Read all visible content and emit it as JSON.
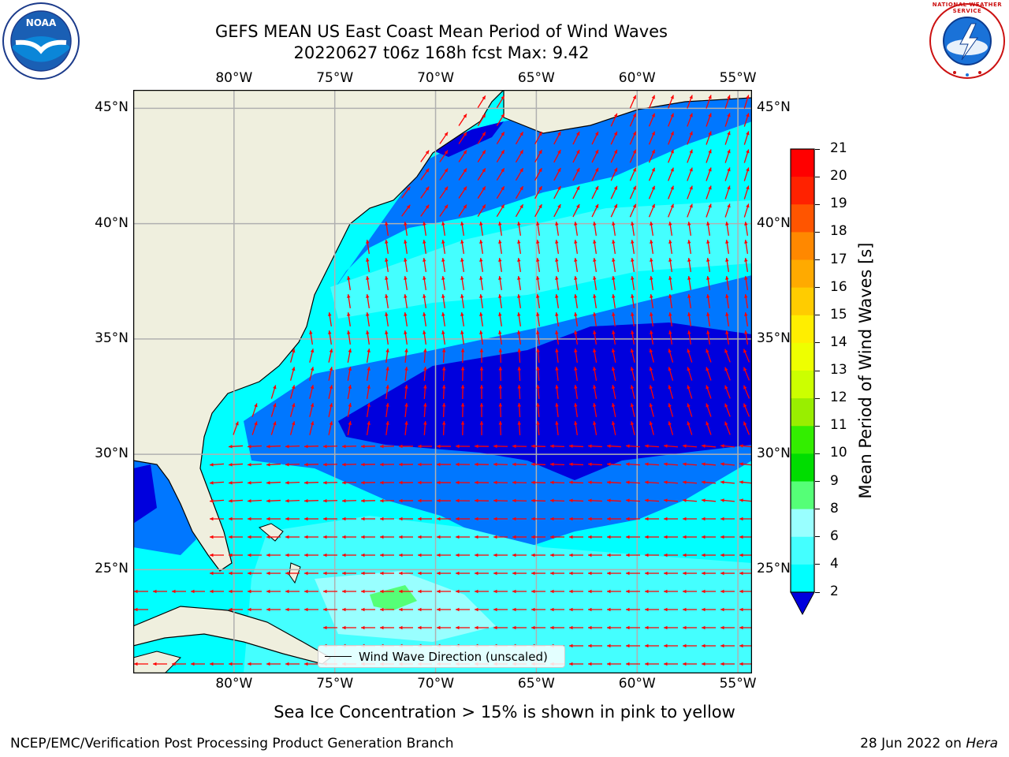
{
  "header": {
    "title": "GEFS MEAN US East Coast Mean Period of Wind Waves",
    "subtitle": "20220627 t06z 168h fcst   Max: 9.42"
  },
  "logos": {
    "left": {
      "text": "NOAA",
      "icon": "noaa-logo"
    },
    "right": {
      "text": "NATIONAL WEATHER SERVICE",
      "icon": "nws-logo"
    }
  },
  "map": {
    "lon_ticks": [
      "80°W",
      "75°W",
      "70°W",
      "65°W",
      "60°W",
      "55°W"
    ],
    "lat_ticks": [
      "45°N",
      "40°N",
      "35°N",
      "30°N",
      "25°N"
    ],
    "lon_values": [
      -80,
      -75,
      -70,
      -65,
      -60,
      -55
    ],
    "lat_values": [
      45,
      40,
      35,
      30,
      25
    ],
    "extent": {
      "lon_min": -85,
      "lon_max": -54.3,
      "lat_min": 20.5,
      "lat_max": 45.8
    },
    "grid": true,
    "land_color": "#efefde",
    "arrow_color": "#ff0000",
    "legend": {
      "label": "Wind Wave Direction (unscaled)"
    }
  },
  "colorbar": {
    "label": "Mean Period of Wind Waves [s]",
    "ticks": [
      "21",
      "20",
      "19",
      "18",
      "17",
      "16",
      "15",
      "14",
      "13",
      "12",
      "11",
      "10",
      "9",
      "8",
      "6",
      "4",
      "2"
    ],
    "tick_values": [
      21,
      20,
      19,
      18,
      17,
      16,
      15,
      14,
      13,
      12,
      11,
      10,
      9,
      8,
      6,
      4,
      2
    ],
    "colors": [
      "#0000dd",
      "#0077ff",
      "#00ffff",
      "#44ffff",
      "#99ffff",
      "#55ff77",
      "#00dd00",
      "#33ee00",
      "#99ee00",
      "#ccff00",
      "#eeff00",
      "#ffee00",
      "#ffcc00",
      "#ffaa00",
      "#ff8800",
      "#ff5500",
      "#ff2200",
      "#ff0000"
    ]
  },
  "caption": "Sea Ice Concentration > 15% is shown in pink to yellow",
  "footer": {
    "left": "NCEP/EMC/Verification Post Processing Product Generation Branch",
    "date": "28 Jun 2022 on",
    "machine": "Hera"
  }
}
